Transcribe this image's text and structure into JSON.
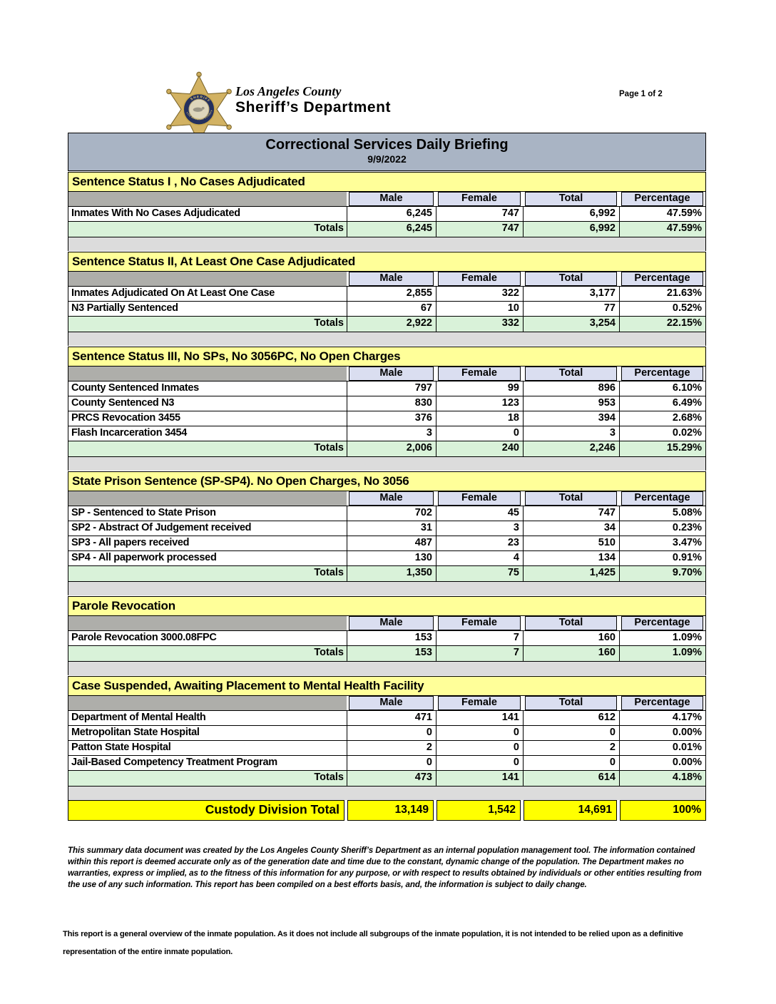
{
  "page": {
    "page_label": "Page 1 of 2"
  },
  "header": {
    "line1": "Los Angeles County",
    "line2": "Sheriff’s Department",
    "badge_icon": "sheriff-star-badge"
  },
  "title": {
    "text": "Correctional Services Daily Briefing",
    "date": "9/9/2022"
  },
  "columns": [
    "Male",
    "Female",
    "Total",
    "Percentage"
  ],
  "labels": {
    "totals": "Totals"
  },
  "sections": [
    {
      "title": "Sentence Status I , No Cases Adjudicated",
      "rows": [
        {
          "label": "Inmates With No Cases Adjudicated",
          "male": "6,245",
          "female": "747",
          "total": "6,992",
          "pct": "47.59%"
        }
      ],
      "totals": {
        "male": "6,245",
        "female": "747",
        "total": "6,992",
        "pct": "47.59%"
      }
    },
    {
      "title": "Sentence Status II, At Least One Case Adjudicated",
      "rows": [
        {
          "label": "Inmates Adjudicated On At Least One Case",
          "male": "2,855",
          "female": "322",
          "total": "3,177",
          "pct": "21.63%"
        },
        {
          "label": "N3 Partially Sentenced",
          "male": "67",
          "female": "10",
          "total": "77",
          "pct": "0.52%"
        }
      ],
      "totals": {
        "male": "2,922",
        "female": "332",
        "total": "3,254",
        "pct": "22.15%"
      }
    },
    {
      "title": "Sentence Status III, No SPs, No 3056PC, No Open Charges",
      "rows": [
        {
          "label": "County Sentenced Inmates",
          "male": "797",
          "female": "99",
          "total": "896",
          "pct": "6.10%"
        },
        {
          "label": "County Sentenced N3",
          "male": "830",
          "female": "123",
          "total": "953",
          "pct": "6.49%"
        },
        {
          "label": "PRCS Revocation 3455",
          "male": "376",
          "female": "18",
          "total": "394",
          "pct": "2.68%"
        },
        {
          "label": "Flash Incarceration 3454",
          "male": "3",
          "female": "0",
          "total": "3",
          "pct": "0.02%"
        }
      ],
      "totals": {
        "male": "2,006",
        "female": "240",
        "total": "2,246",
        "pct": "15.29%"
      }
    },
    {
      "title": "State Prison Sentence (SP-SP4). No Open Charges, No 3056",
      "rows": [
        {
          "label": "SP - Sentenced to State Prison",
          "male": "702",
          "female": "45",
          "total": "747",
          "pct": "5.08%"
        },
        {
          "label": "SP2 - Abstract Of Judgement received",
          "male": "31",
          "female": "3",
          "total": "34",
          "pct": "0.23%"
        },
        {
          "label": "SP3 - All papers received",
          "male": "487",
          "female": "23",
          "total": "510",
          "pct": "3.47%"
        },
        {
          "label": "SP4 - All paperwork processed",
          "male": "130",
          "female": "4",
          "total": "134",
          "pct": "0.91%"
        }
      ],
      "totals": {
        "male": "1,350",
        "female": "75",
        "total": "1,425",
        "pct": "9.70%"
      }
    },
    {
      "title": "Parole Revocation",
      "rows": [
        {
          "label": "Parole Revocation 3000.08FPC",
          "male": "153",
          "female": "7",
          "total": "160",
          "pct": "1.09%"
        }
      ],
      "totals": {
        "male": "153",
        "female": "7",
        "total": "160",
        "pct": "1.09%"
      }
    },
    {
      "title": "Case Suspended, Awaiting Placement to Mental Health Facility",
      "rows": [
        {
          "label": "Department of Mental Health",
          "male": "471",
          "female": "141",
          "total": "612",
          "pct": "4.17%"
        },
        {
          "label": "Metropolitan State Hospital",
          "male": "0",
          "female": "0",
          "total": "0",
          "pct": "0.00%"
        },
        {
          "label": "Patton State Hospital",
          "male": "2",
          "female": "0",
          "total": "2",
          "pct": "0.01%"
        },
        {
          "label": "Jail-Based Competency Treatment Program",
          "male": "0",
          "female": "0",
          "total": "0",
          "pct": "0.00%"
        }
      ],
      "totals": {
        "male": "473",
        "female": "141",
        "total": "614",
        "pct": "4.18%"
      }
    }
  ],
  "grand_total": {
    "label": "Custody Division Total",
    "male": "13,149",
    "female": "1,542",
    "total": "14,691",
    "pct": "100%"
  },
  "disclaimer": "This summary data document was created by the Los Angeles County Sheriff’s Department as an internal population management tool.  The information contained within this report is deemed accurate only as of the generation date and time due to the constant, dynamic change of the population.  The Department makes no warranties, express or implied, as to the fitness of this information for any purpose, or with respect to results obtained by individuals or other entities resulting from the use of any such information.  This report has been compiled on a best efforts basis, and, the information is subject to daily change.",
  "footnote": "This report is a general overview of the inmate population.  As it does not include all subgroups of the inmate population, it is not intended to be relied upon as a definitive representation of the entire inmate population.",
  "colors": {
    "title_bar_bg": "#a9b4c4",
    "section_header_bg": "#ffff99",
    "column_header_bg": "#dadef0",
    "column_spacer_bg": "#aeaeaa",
    "totals_bg": "#d9f2d9",
    "section_gap_bg": "#dcdcdc",
    "grand_total_bg": "#ffff00",
    "border": "#000000",
    "badge_gold": "#d2b263",
    "badge_navy": "#24305e"
  }
}
